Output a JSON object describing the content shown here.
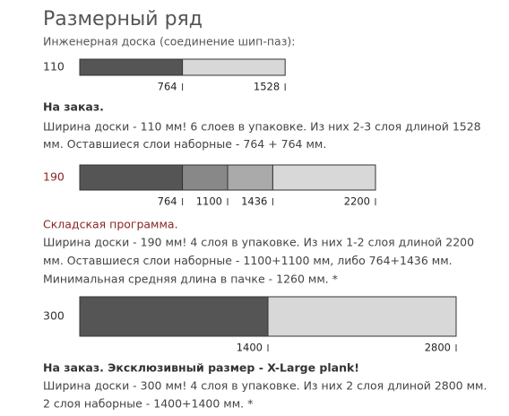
{
  "title": "Размерный ряд",
  "subtitle": "Инженерная доска (соединение шип-паз):",
  "blocks": [
    {
      "width_label": "110",
      "accent": "#333333",
      "heading": "На заказ.",
      "heading_bold": true,
      "heading_color": "#333333",
      "segments": [
        764,
        1528
      ],
      "colors": [
        "#555555",
        "#d8d8d8"
      ],
      "lines": [
        "Ширина доски - 110 мм! 6 слоев в упаковке. Из них 2-3 слоя длиной 1528",
        "мм. Оставшиеся слои наборные - 764 + 764 мм."
      ]
    },
    {
      "width_label": "190",
      "accent": "#8b2525",
      "heading": "Складская программа.",
      "heading_bold": false,
      "heading_color": "#8b2525",
      "segments": [
        764,
        1100,
        1436,
        2200
      ],
      "colors": [
        "#555555",
        "#888888",
        "#aaaaaa",
        "#d8d8d8"
      ],
      "lines": [
        "Ширина доски - 190 мм! 4 слоя в упаковке. Из них 1-2 слоя длиной 2200",
        "мм. Оставшиеся слои наборные - 1100+1100 мм, либо 764+1436 мм.",
        "Минимальная средняя длина в пачке - 1260 мм. *"
      ]
    },
    {
      "width_label": "300",
      "accent": "#333333",
      "heading": "На заказ. Эксклюзивный размер - X-Large plank!",
      "heading_bold": true,
      "heading_color": "#333333",
      "segments": [
        1400,
        2800
      ],
      "colors": [
        "#555555",
        "#d8d8d8"
      ],
      "lines": [
        "Ширина доски - 300 мм! 4 слоя в упаковке. Из них 2 слоя длиной 2800 мм.",
        "2 слоя наборные - 1400+1400 мм. *"
      ]
    }
  ]
}
